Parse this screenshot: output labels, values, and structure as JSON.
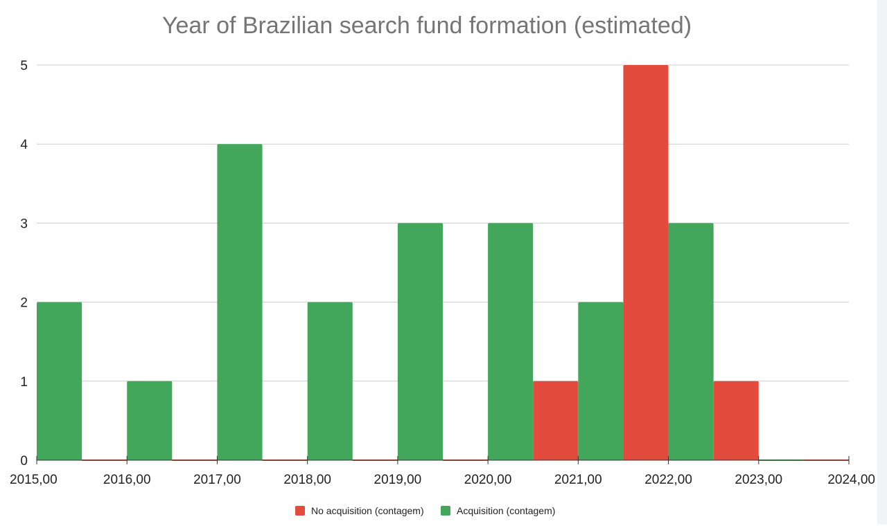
{
  "chart_data": {
    "type": "bar",
    "title": "Year of Brazilian search fund formation (estimated)",
    "xlabel": "",
    "ylabel": "",
    "x_ticks": [
      "2015,00",
      "2016,00",
      "2017,00",
      "2018,00",
      "2019,00",
      "2020,00",
      "2021,00",
      "2022,00",
      "2023,00",
      "2024,00"
    ],
    "y_ticks": [
      "0",
      "1",
      "2",
      "3",
      "4",
      "5"
    ],
    "xlim": [
      2015,
      2024
    ],
    "ylim": [
      0,
      5
    ],
    "grid": true,
    "legend_position": "bottom",
    "series": [
      {
        "name": "No acquisition (contagem)",
        "color": "#e34b3d",
        "points": [
          {
            "x": 2015.5,
            "y": 0
          },
          {
            "x": 2016.5,
            "y": 0
          },
          {
            "x": 2017.5,
            "y": 0
          },
          {
            "x": 2018.5,
            "y": 0
          },
          {
            "x": 2019.5,
            "y": 0
          },
          {
            "x": 2020.5,
            "y": 1
          },
          {
            "x": 2021.5,
            "y": 5
          },
          {
            "x": 2022.5,
            "y": 1
          },
          {
            "x": 2023.5,
            "y": 0
          }
        ]
      },
      {
        "name": "Acquisition (contagem)",
        "color": "#43a75b",
        "points": [
          {
            "x": 2015.5,
            "y": 2
          },
          {
            "x": 2016.5,
            "y": 1
          },
          {
            "x": 2017.5,
            "y": 4
          },
          {
            "x": 2018.5,
            "y": 2
          },
          {
            "x": 2019.5,
            "y": 3
          },
          {
            "x": 2020.5,
            "y": 3
          },
          {
            "x": 2021.5,
            "y": 2
          },
          {
            "x": 2022.5,
            "y": 3
          },
          {
            "x": 2023.5,
            "y": 0
          }
        ]
      }
    ]
  }
}
